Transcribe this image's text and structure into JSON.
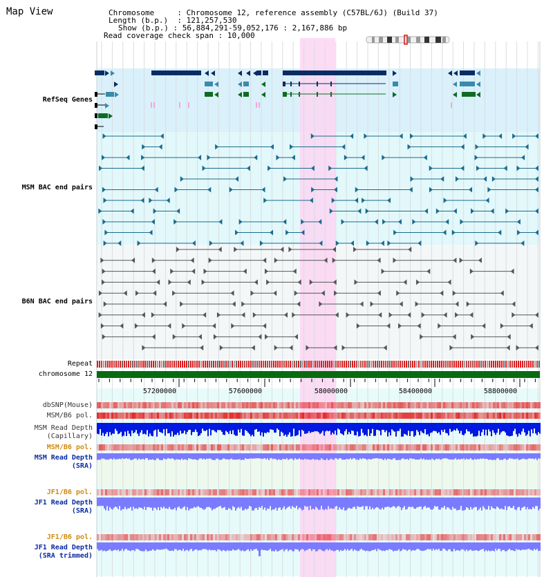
{
  "title": "Map View",
  "info": {
    "chromosome_key": "Chromosome",
    "chromosome_val": "Chromosome 12, reference assembly (C57BL/6J) (Build 37)",
    "length_key": "Length (b.p.)",
    "length_val": "121,257,530",
    "show_key": "Show (b.p.)",
    "show_val": "56,884,291-59,052,176 : 2,167,886 bp",
    "coverage_key": "Read coverage check span",
    "coverage_val": "10,000"
  },
  "tracks": {
    "refseq": "RefSeq Genes",
    "msm_bac": "MSM BAC end pairs",
    "b6n_bac": "B6N BAC end pairs",
    "repeat": "Repeat",
    "chromosome": "chromosome 12",
    "dbsnp": "dbSNP(Mouse)",
    "msm_b6_pol": "MSM/B6 pol.",
    "msm_depth_cap": "MSM Read Depth\n(Capillary)",
    "msm_b6_pol2": "MSM/B6 pol.",
    "msm_depth_sra": "MSM Read Depth\n(SRA)",
    "jf1_b6_pol": "JF1/B6 pol.",
    "jf1_depth_sra": "JF1 Read Depth\n(SRA)",
    "jf1_b6_pol2": "JF1/B6 pol.",
    "jf1_depth_trim": "JF1 Read Depth\n(SRA trimmed)"
  },
  "axis_ticks": [
    "57200000",
    "57600000",
    "58000000",
    "58400000",
    "58800000"
  ],
  "colors": {
    "refseq_bg": "#daf1fb",
    "msm_bg": "#e2f8fb",
    "b6n_bg": "#f4f7f8",
    "highlight": "#fcd6f2",
    "gene_dark": "#0b2b63",
    "gene_teal": "#3a8bab",
    "gene_green": "#0e6b22",
    "msm_line": "#1b6a8c",
    "b6n_line": "#555555",
    "chromosome_bar": "#086b10",
    "label_blue": "#0b2ba0",
    "label_teal": "#0b6a80",
    "label_orange": "#d08a10",
    "depth_blue": "#0018e0",
    "depth_light": "#7b7bff"
  }
}
